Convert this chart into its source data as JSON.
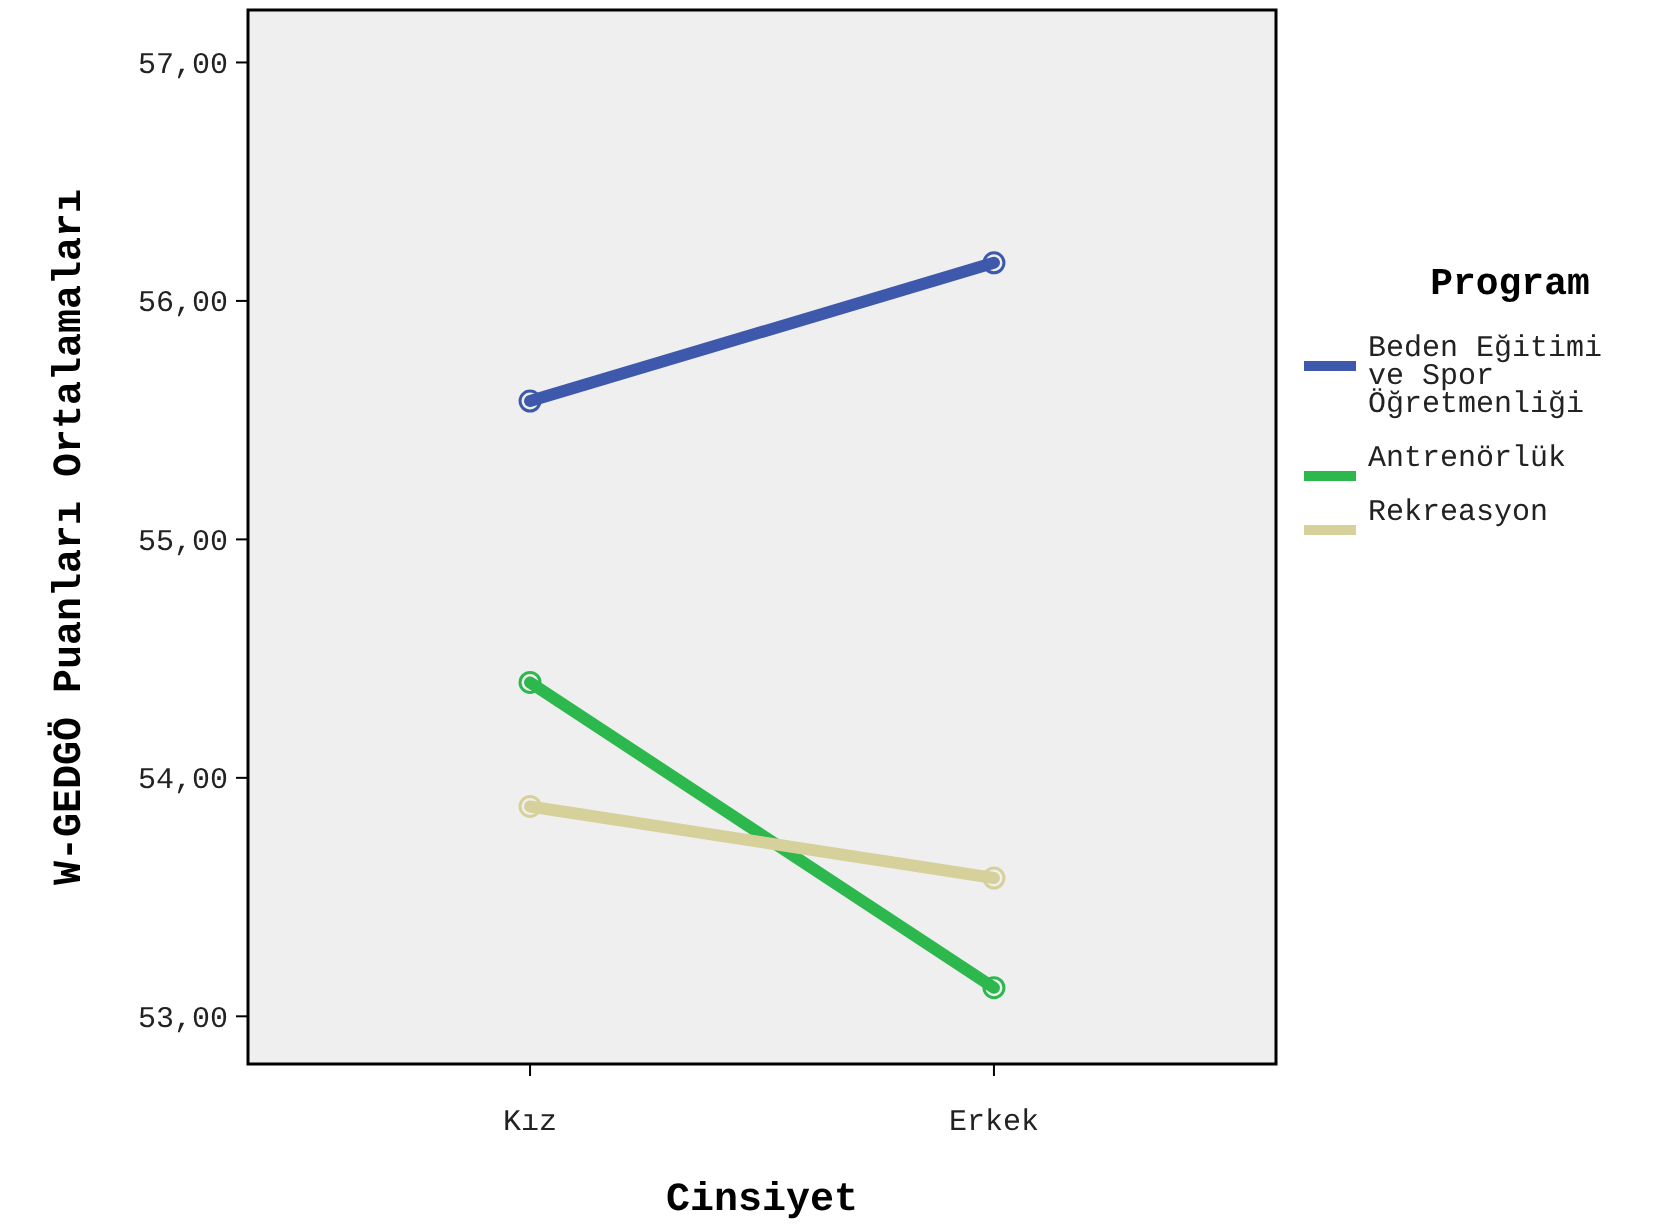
{
  "chart_data": {
    "type": "line",
    "xlabel": "Cinsiyet",
    "ylabel": "W-GEDGÖ Puanları Ortalamaları",
    "legend_title": "Program",
    "categories": [
      "Kız",
      "Erkek"
    ],
    "series": [
      {
        "name": "Beden Eğitimi ve Spor Öğretmenliği",
        "color": "#3e58ac",
        "values": [
          55.58,
          56.16
        ]
      },
      {
        "name": "Antrenörlük",
        "color": "#2db84d",
        "values": [
          54.4,
          53.12
        ]
      },
      {
        "name": "Rekreasyon",
        "color": "#d6d09a",
        "values": [
          53.88,
          53.58
        ]
      }
    ],
    "ylim": [
      52.8,
      57.22
    ],
    "yticks": [
      {
        "value": 53,
        "label": "53,00"
      },
      {
        "value": 54,
        "label": "54,00"
      },
      {
        "value": 55,
        "label": "55,00"
      },
      {
        "value": 56,
        "label": "56,00"
      },
      {
        "value": 57,
        "label": "57,00"
      }
    ],
    "marker": "circle",
    "legend": "right"
  }
}
